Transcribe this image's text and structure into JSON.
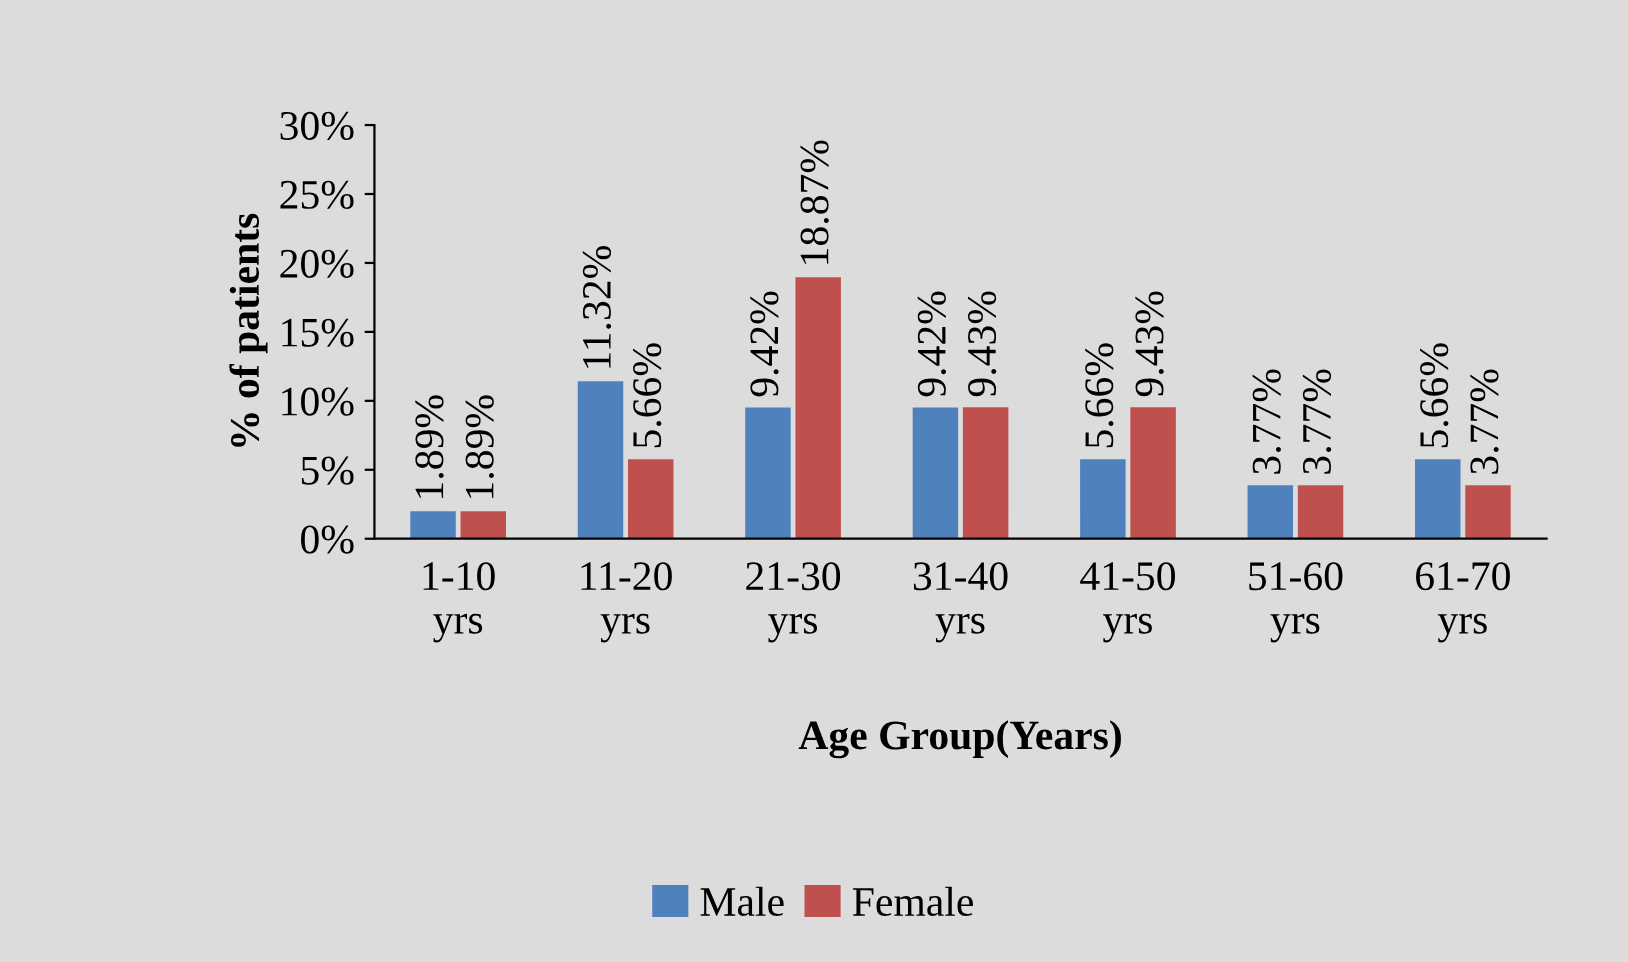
{
  "chart_data": {
    "type": "bar",
    "xlabel": "Age Group(Years)",
    "ylabel": "% of patients",
    "categories": [
      "1-10\nyrs",
      "11-20\nyrs",
      "21-30\nyrs",
      "31-40\nyrs",
      "41-50\nyrs",
      "51-60\nyrs",
      "61-70\nyrs"
    ],
    "series": [
      {
        "name": "Male",
        "color": "#4f81bd",
        "values": [
          1.89,
          11.32,
          9.42,
          9.42,
          5.66,
          3.77,
          5.66
        ],
        "value_labels": [
          "1.89%",
          "11.32%",
          "9.42%",
          "9.42%",
          "5.66%",
          "3.77%",
          "5.66%"
        ]
      },
      {
        "name": "Female",
        "color": "#c0504d",
        "values": [
          1.89,
          5.66,
          18.87,
          9.43,
          9.43,
          3.77,
          3.77
        ],
        "value_labels": [
          "1.89%",
          "5.66%",
          "18.87%",
          "9.43%",
          "9.43%",
          "3.77%",
          "3.77%"
        ]
      }
    ],
    "ylim": [
      0,
      30
    ],
    "yticks": [
      {
        "value": 0,
        "label": "0%"
      },
      {
        "value": 5,
        "label": "5%"
      },
      {
        "value": 10,
        "label": "10%"
      },
      {
        "value": 15,
        "label": "15%"
      },
      {
        "value": 20,
        "label": "20%"
      },
      {
        "value": 25,
        "label": "25%"
      },
      {
        "value": 30,
        "label": "30%"
      }
    ],
    "grid": false,
    "legend": "bottom"
  }
}
